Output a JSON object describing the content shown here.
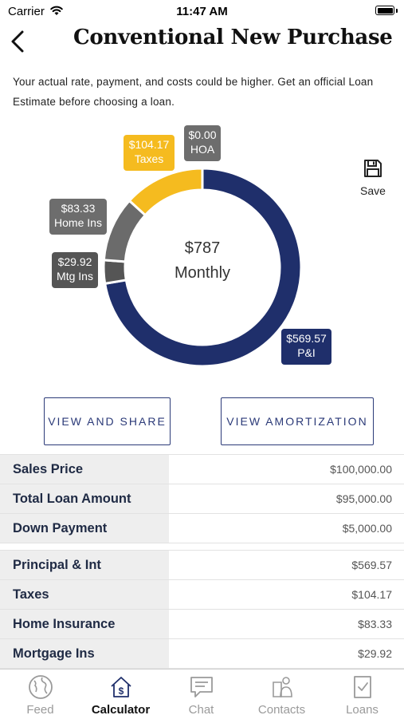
{
  "status": {
    "carrier": "Carrier",
    "time": "11:47 AM"
  },
  "header": {
    "title": "Conventional New Purchase"
  },
  "disclaimer": "Your actual rate, payment, and costs could be higher. Get an official Loan Estimate before choosing a loan.",
  "donut": {
    "center_amount": "$787",
    "center_label": "Monthly",
    "segments": [
      {
        "key": "pi",
        "amount": "$569.57",
        "label": "P&I",
        "value": 569.57,
        "color": "#1f2f6b"
      },
      {
        "key": "mtg",
        "amount": "$29.92",
        "label": "Mtg Ins",
        "value": 29.92,
        "color": "#555555"
      },
      {
        "key": "home",
        "amount": "$83.33",
        "label": "Home Ins",
        "value": 83.33,
        "color": "#6b6b6b"
      },
      {
        "key": "taxes",
        "amount": "$104.17",
        "label": "Taxes",
        "value": 104.17,
        "color": "#f5bb1f"
      },
      {
        "key": "hoa",
        "amount": "$0.00",
        "label": "HOA",
        "value": 0,
        "color": "#707070"
      }
    ]
  },
  "actions": {
    "save_label": "Save",
    "view_share": "VIEW AND SHARE",
    "view_amortization": "VIEW AMORTIZATION"
  },
  "loan_table": [
    {
      "label": "Sales Price",
      "value": "$100,000.00"
    },
    {
      "label": "Total Loan Amount",
      "value": "$95,000.00"
    },
    {
      "label": "Down Payment",
      "value": "$5,000.00"
    }
  ],
  "payment_table": [
    {
      "label": "Principal & Int",
      "value": "$569.57"
    },
    {
      "label": "Taxes",
      "value": "$104.17"
    },
    {
      "label": "Home Insurance",
      "value": "$83.33"
    },
    {
      "label": "Mortgage Ins",
      "value": "$29.92"
    }
  ],
  "tabs": [
    {
      "label": "Feed",
      "icon": "globe-icon",
      "active": false
    },
    {
      "label": "Calculator",
      "icon": "calculator-house-icon",
      "active": true
    },
    {
      "label": "Chat",
      "icon": "chat-icon",
      "active": false
    },
    {
      "label": "Contacts",
      "icon": "contacts-icon",
      "active": false
    },
    {
      "label": "Loans",
      "icon": "loans-icon",
      "active": false
    }
  ]
}
